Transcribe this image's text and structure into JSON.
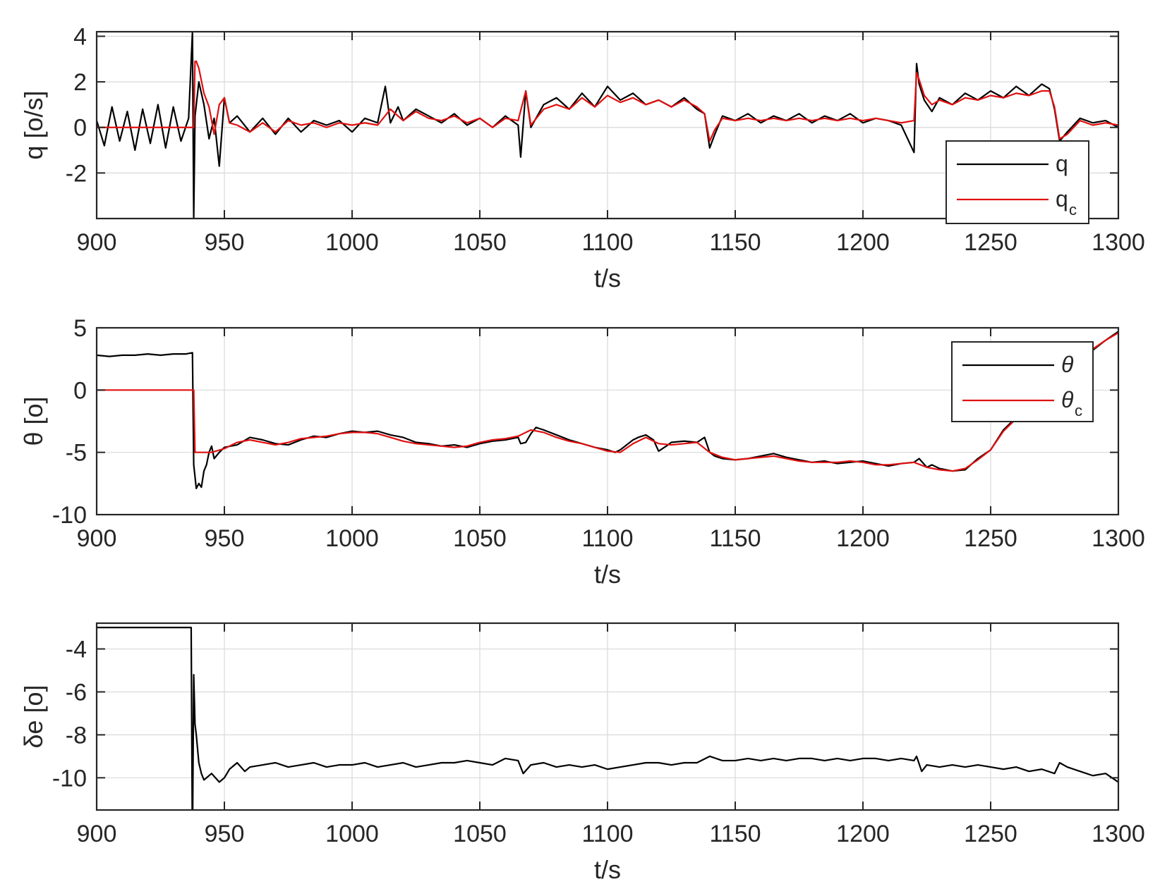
{
  "chart_data": [
    {
      "type": "line",
      "xlabel": "t/s",
      "ylabel": "q [o/s]",
      "xlim": [
        900,
        1300
      ],
      "ylim": [
        -4,
        4.2
      ],
      "xticks": [
        900,
        950,
        1000,
        1050,
        1100,
        1150,
        1200,
        1250,
        1300
      ],
      "xtick_labels": [
        "900",
        "950",
        "1000",
        "1050",
        "1100",
        "1150",
        "1200",
        "1250",
        "1300"
      ],
      "yticks": [
        -2,
        0,
        2,
        4
      ],
      "ytick_labels": [
        "-2",
        "0",
        "2",
        "4"
      ],
      "grid": true,
      "legend": {
        "placement": "bottom-right",
        "entries": [
          {
            "label": "q",
            "sub": ""
          },
          {
            "label": "q",
            "sub": "c"
          }
        ]
      },
      "series": [
        {
          "name": "q",
          "color": "#000000",
          "x": [
            900,
            903,
            906,
            909,
            912,
            915,
            918,
            921,
            924,
            927,
            930,
            933,
            936,
            937.5,
            938,
            938.5,
            940,
            942,
            944,
            946,
            948,
            950,
            952,
            955,
            960,
            965,
            970,
            975,
            980,
            985,
            990,
            995,
            1000,
            1005,
            1010,
            1013,
            1015,
            1018,
            1020,
            1025,
            1030,
            1035,
            1040,
            1045,
            1050,
            1055,
            1060,
            1065,
            1066,
            1068,
            1070,
            1075,
            1080,
            1085,
            1090,
            1095,
            1100,
            1105,
            1110,
            1115,
            1120,
            1125,
            1130,
            1135,
            1138,
            1140,
            1142,
            1145,
            1150,
            1155,
            1160,
            1165,
            1170,
            1175,
            1180,
            1185,
            1190,
            1195,
            1200,
            1205,
            1210,
            1215,
            1220,
            1221,
            1222,
            1224,
            1227,
            1230,
            1235,
            1240,
            1245,
            1250,
            1255,
            1260,
            1265,
            1270,
            1273,
            1275,
            1277,
            1280,
            1285,
            1290,
            1295,
            1300
          ],
          "y": [
            0.3,
            -0.8,
            0.9,
            -0.6,
            0.7,
            -1.0,
            0.8,
            -0.7,
            1.0,
            -0.9,
            0.9,
            -0.6,
            0.4,
            4.2,
            -4.0,
            0.5,
            2.0,
            1.0,
            -0.5,
            0.4,
            -1.7,
            1.3,
            0.2,
            0.5,
            -0.2,
            0.4,
            -0.3,
            0.4,
            -0.2,
            0.3,
            0.1,
            0.3,
            -0.2,
            0.4,
            0.2,
            1.8,
            0.2,
            0.9,
            0.3,
            0.8,
            0.5,
            0.2,
            0.6,
            0.1,
            0.4,
            0.0,
            0.5,
            0.1,
            -1.3,
            1.6,
            0.0,
            1.0,
            1.3,
            0.8,
            1.5,
            0.9,
            1.8,
            1.2,
            1.5,
            1.0,
            1.2,
            0.9,
            1.3,
            0.8,
            0.6,
            -0.9,
            -0.3,
            0.5,
            0.3,
            0.6,
            0.2,
            0.5,
            0.3,
            0.6,
            0.2,
            0.5,
            0.3,
            0.6,
            0.2,
            0.4,
            0.3,
            0.1,
            -1.1,
            2.8,
            1.9,
            1.2,
            0.7,
            1.3,
            1.0,
            1.5,
            1.2,
            1.6,
            1.3,
            1.8,
            1.4,
            1.9,
            1.7,
            0.8,
            -0.6,
            -0.2,
            0.4,
            0.2,
            0.3,
            0.0
          ]
        },
        {
          "name": "q_c",
          "color": "#e01010",
          "x": [
            900,
            938,
            938.5,
            939,
            940,
            942,
            944,
            946,
            948,
            950,
            952,
            955,
            960,
            965,
            970,
            975,
            980,
            985,
            990,
            995,
            1000,
            1005,
            1010,
            1015,
            1020,
            1025,
            1030,
            1035,
            1040,
            1045,
            1050,
            1055,
            1060,
            1065,
            1068,
            1070,
            1075,
            1080,
            1085,
            1090,
            1095,
            1100,
            1105,
            1110,
            1115,
            1120,
            1125,
            1130,
            1135,
            1138,
            1140,
            1142,
            1145,
            1150,
            1155,
            1160,
            1165,
            1170,
            1175,
            1180,
            1185,
            1190,
            1195,
            1200,
            1205,
            1210,
            1215,
            1220,
            1221,
            1222,
            1224,
            1227,
            1230,
            1235,
            1240,
            1245,
            1250,
            1255,
            1260,
            1265,
            1270,
            1273,
            1275,
            1277,
            1280,
            1285,
            1290,
            1295,
            1300
          ],
          "y": [
            0,
            0,
            2.9,
            2.9,
            2.6,
            1.5,
            0.9,
            -0.3,
            1.0,
            1.3,
            0.2,
            0.1,
            -0.2,
            0.2,
            -0.2,
            0.3,
            0.1,
            0.2,
            0.0,
            0.2,
            0.1,
            0.2,
            0.1,
            0.8,
            0.3,
            0.7,
            0.4,
            0.3,
            0.5,
            0.2,
            0.4,
            0.0,
            0.4,
            0.3,
            1.6,
            0.1,
            0.8,
            1.0,
            0.8,
            1.3,
            0.9,
            1.4,
            1.1,
            1.3,
            1.0,
            1.2,
            0.9,
            1.2,
            0.9,
            0.6,
            -0.6,
            -0.1,
            0.4,
            0.3,
            0.4,
            0.3,
            0.4,
            0.3,
            0.4,
            0.3,
            0.4,
            0.3,
            0.4,
            0.3,
            0.4,
            0.3,
            0.2,
            0.3,
            2.4,
            2.1,
            1.4,
            1.0,
            1.2,
            1.0,
            1.3,
            1.2,
            1.4,
            1.3,
            1.5,
            1.4,
            1.6,
            1.6,
            0.9,
            -0.5,
            -0.3,
            0.3,
            0.1,
            0.2,
            0.1
          ]
        }
      ]
    },
    {
      "type": "line",
      "xlabel": "t/s",
      "ylabel": "θ [o]",
      "xlim": [
        900,
        1300
      ],
      "ylim": [
        -10,
        5
      ],
      "xticks": [
        900,
        950,
        1000,
        1050,
        1100,
        1150,
        1200,
        1250,
        1300
      ],
      "xtick_labels": [
        "900",
        "950",
        "1000",
        "1050",
        "1100",
        "1150",
        "1200",
        "1250",
        "1300"
      ],
      "yticks": [
        -10,
        -5,
        0,
        5
      ],
      "ytick_labels": [
        "-10",
        "-5",
        "0",
        "5"
      ],
      "grid": true,
      "legend": {
        "placement": "top-right",
        "entries": [
          {
            "label": "θ",
            "sub": ""
          },
          {
            "label": "θ",
            "sub": "c"
          }
        ]
      },
      "series": [
        {
          "name": "θ",
          "color": "#000000",
          "x": [
            900,
            905,
            910,
            915,
            920,
            925,
            930,
            935,
            937.5,
            938,
            939,
            940,
            941,
            942,
            943,
            944,
            945,
            946,
            948,
            950,
            955,
            960,
            965,
            970,
            975,
            980,
            985,
            990,
            995,
            1000,
            1005,
            1010,
            1015,
            1020,
            1025,
            1030,
            1035,
            1040,
            1045,
            1050,
            1055,
            1060,
            1065,
            1066,
            1068,
            1070,
            1072,
            1075,
            1080,
            1085,
            1090,
            1095,
            1100,
            1103,
            1105,
            1110,
            1112,
            1115,
            1118,
            1120,
            1123,
            1125,
            1130,
            1135,
            1138,
            1140,
            1142,
            1145,
            1150,
            1155,
            1160,
            1165,
            1170,
            1175,
            1180,
            1185,
            1190,
            1195,
            1200,
            1205,
            1210,
            1215,
            1220,
            1222,
            1225,
            1227,
            1230,
            1235,
            1240,
            1245,
            1250,
            1255,
            1260,
            1265,
            1270,
            1275,
            1280,
            1285,
            1290,
            1295,
            1300
          ],
          "y": [
            2.8,
            2.7,
            2.8,
            2.8,
            2.9,
            2.8,
            2.9,
            2.9,
            3.0,
            -6.0,
            -7.9,
            -7.5,
            -7.8,
            -6.5,
            -6.0,
            -5.0,
            -4.5,
            -5.5,
            -5.0,
            -4.6,
            -4.4,
            -3.8,
            -4.0,
            -4.3,
            -4.4,
            -4.0,
            -3.7,
            -3.8,
            -3.5,
            -3.3,
            -3.4,
            -3.3,
            -3.6,
            -3.8,
            -4.2,
            -4.3,
            -4.5,
            -4.4,
            -4.6,
            -4.3,
            -4.1,
            -4.0,
            -3.8,
            -4.3,
            -4.2,
            -3.5,
            -3.0,
            -3.2,
            -3.6,
            -4.0,
            -4.3,
            -4.6,
            -4.8,
            -5.0,
            -4.8,
            -4.0,
            -3.8,
            -3.6,
            -4.0,
            -4.9,
            -4.5,
            -4.2,
            -4.1,
            -4.2,
            -3.8,
            -5.0,
            -5.3,
            -5.5,
            -5.6,
            -5.5,
            -5.3,
            -5.1,
            -5.4,
            -5.6,
            -5.8,
            -5.7,
            -5.9,
            -5.8,
            -5.7,
            -5.9,
            -6.1,
            -5.9,
            -5.8,
            -5.5,
            -6.2,
            -6.0,
            -6.3,
            -6.5,
            -6.4,
            -5.5,
            -4.8,
            -3.2,
            -2.2,
            -1.5,
            -0.8,
            0.0,
            1.0,
            2.0,
            3.2,
            4.0,
            4.7
          ]
        },
        {
          "name": "θ_c",
          "color": "#e01010",
          "x": [
            900,
            938,
            938.5,
            945,
            950,
            955,
            960,
            965,
            970,
            975,
            980,
            985,
            990,
            995,
            1000,
            1005,
            1010,
            1015,
            1020,
            1025,
            1030,
            1035,
            1040,
            1045,
            1050,
            1055,
            1060,
            1065,
            1070,
            1075,
            1080,
            1085,
            1090,
            1095,
            1100,
            1105,
            1110,
            1115,
            1120,
            1125,
            1130,
            1135,
            1140,
            1145,
            1150,
            1155,
            1160,
            1165,
            1170,
            1175,
            1180,
            1185,
            1190,
            1195,
            1200,
            1205,
            1210,
            1215,
            1220,
            1225,
            1230,
            1235,
            1240,
            1245,
            1250,
            1255,
            1260,
            1265,
            1270,
            1275,
            1280,
            1285,
            1290,
            1295,
            1300
          ],
          "y": [
            0,
            0,
            -5.0,
            -5.0,
            -4.7,
            -4.2,
            -4.0,
            -4.2,
            -4.4,
            -4.2,
            -3.9,
            -3.8,
            -3.7,
            -3.5,
            -3.4,
            -3.4,
            -3.5,
            -3.8,
            -4.1,
            -4.3,
            -4.4,
            -4.5,
            -4.6,
            -4.5,
            -4.2,
            -4.0,
            -3.9,
            -3.7,
            -3.2,
            -3.4,
            -3.8,
            -4.1,
            -4.3,
            -4.6,
            -4.9,
            -5.0,
            -4.3,
            -3.8,
            -4.3,
            -4.4,
            -4.3,
            -4.2,
            -5.0,
            -5.4,
            -5.6,
            -5.5,
            -5.4,
            -5.3,
            -5.5,
            -5.7,
            -5.8,
            -5.8,
            -5.8,
            -5.7,
            -5.8,
            -6.0,
            -6.0,
            -5.9,
            -5.8,
            -6.2,
            -6.4,
            -6.5,
            -6.3,
            -5.6,
            -4.8,
            -3.3,
            -2.3,
            -1.6,
            -0.9,
            -0.1,
            1.0,
            2.1,
            3.3,
            4.0,
            4.6
          ]
        }
      ]
    },
    {
      "type": "line",
      "xlabel": "t/s",
      "ylabel": "δe [o]",
      "xlim": [
        900,
        1300
      ],
      "ylim": [
        -11.5,
        -2.8
      ],
      "xticks": [
        900,
        950,
        1000,
        1050,
        1100,
        1150,
        1200,
        1250,
        1300
      ],
      "xtick_labels": [
        "900",
        "950",
        "1000",
        "1050",
        "1100",
        "1150",
        "1200",
        "1250",
        "1300"
      ],
      "yticks": [
        -10,
        -8,
        -6,
        -4
      ],
      "ytick_labels": [
        "-10",
        "-8",
        "-6",
        "-4"
      ],
      "grid": true,
      "legend": null,
      "series": [
        {
          "name": "δe",
          "color": "#000000",
          "x": [
            900,
            937,
            937.4,
            937.6,
            938,
            938.5,
            939,
            940,
            941,
            942,
            943,
            945,
            948,
            950,
            952,
            955,
            958,
            960,
            965,
            970,
            975,
            980,
            985,
            990,
            995,
            1000,
            1005,
            1010,
            1015,
            1020,
            1025,
            1030,
            1035,
            1040,
            1045,
            1050,
            1055,
            1060,
            1065,
            1067,
            1070,
            1075,
            1080,
            1085,
            1090,
            1095,
            1100,
            1105,
            1110,
            1115,
            1120,
            1125,
            1130,
            1135,
            1140,
            1145,
            1150,
            1155,
            1160,
            1165,
            1170,
            1175,
            1180,
            1185,
            1190,
            1195,
            1200,
            1205,
            1210,
            1215,
            1220,
            1221,
            1223,
            1225,
            1230,
            1235,
            1240,
            1245,
            1250,
            1255,
            1260,
            1265,
            1270,
            1275,
            1277,
            1280,
            1285,
            1290,
            1295,
            1300
          ],
          "y": [
            -3.0,
            -3.0,
            -11.5,
            -11.5,
            -5.2,
            -7.5,
            -8.0,
            -9.3,
            -9.8,
            -10.1,
            -10.0,
            -9.8,
            -10.2,
            -10.0,
            -9.6,
            -9.3,
            -9.7,
            -9.5,
            -9.4,
            -9.3,
            -9.5,
            -9.4,
            -9.3,
            -9.5,
            -9.4,
            -9.4,
            -9.3,
            -9.5,
            -9.4,
            -9.3,
            -9.5,
            -9.4,
            -9.3,
            -9.3,
            -9.2,
            -9.3,
            -9.4,
            -9.1,
            -9.2,
            -9.8,
            -9.4,
            -9.3,
            -9.5,
            -9.4,
            -9.5,
            -9.4,
            -9.6,
            -9.5,
            -9.4,
            -9.3,
            -9.3,
            -9.4,
            -9.3,
            -9.3,
            -9.0,
            -9.2,
            -9.2,
            -9.1,
            -9.2,
            -9.1,
            -9.2,
            -9.1,
            -9.1,
            -9.2,
            -9.1,
            -9.2,
            -9.1,
            -9.1,
            -9.2,
            -9.1,
            -9.2,
            -9.0,
            -9.7,
            -9.4,
            -9.5,
            -9.4,
            -9.5,
            -9.4,
            -9.5,
            -9.6,
            -9.5,
            -9.7,
            -9.6,
            -9.8,
            -9.3,
            -9.5,
            -9.7,
            -9.9,
            -9.8,
            -10.2
          ]
        }
      ]
    }
  ]
}
